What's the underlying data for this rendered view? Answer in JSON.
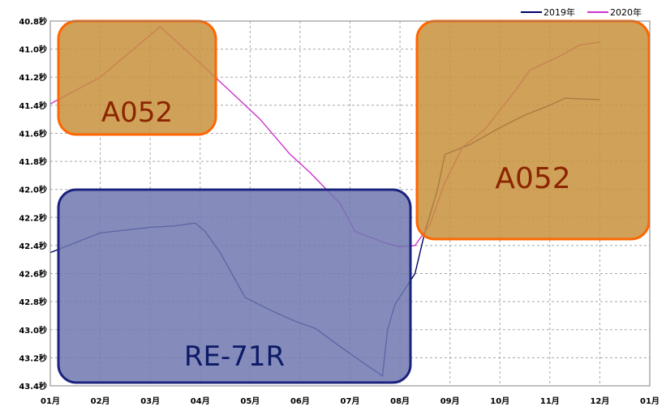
{
  "chart_data": {
    "type": "line",
    "x_ticks": [
      "01月",
      "02月",
      "03月",
      "04月",
      "05月",
      "06月",
      "07月",
      "08月",
      "09月",
      "10月",
      "11月",
      "12月",
      "01月"
    ],
    "y_ticks": [
      "40.8秒",
      "41.0秒",
      "41.2秒",
      "41.4秒",
      "41.6秒",
      "41.8秒",
      "42.0秒",
      "42.2秒",
      "42.4秒",
      "42.6秒",
      "42.8秒",
      "43.0秒",
      "43.2秒",
      "43.4秒"
    ],
    "ylim": [
      40.8,
      43.4
    ],
    "y_inverted": true,
    "xlim": [
      0,
      12
    ],
    "grid": true,
    "legend_position": "top-right",
    "series": [
      {
        "name": "2019年",
        "color": "#000066",
        "points": [
          [
            0,
            42.45
          ],
          [
            0.5,
            42.38
          ],
          [
            1,
            42.31
          ],
          [
            1.5,
            42.29
          ],
          [
            2,
            42.27
          ],
          [
            2.5,
            42.26
          ],
          [
            2.9,
            42.24
          ],
          [
            3.1,
            42.3
          ],
          [
            3.4,
            42.45
          ],
          [
            3.9,
            42.77
          ],
          [
            4.4,
            42.86
          ],
          [
            4.9,
            42.94
          ],
          [
            5.3,
            42.99
          ],
          [
            5.8,
            43.12
          ],
          [
            6.2,
            43.22
          ],
          [
            6.65,
            43.33
          ],
          [
            6.75,
            43.0
          ],
          [
            6.9,
            42.82
          ],
          [
            7.3,
            42.6
          ],
          [
            7.5,
            42.3
          ],
          [
            7.75,
            42.0
          ],
          [
            7.9,
            41.75
          ],
          [
            8.4,
            41.68
          ],
          [
            9,
            41.56
          ],
          [
            9.5,
            41.47
          ],
          [
            10,
            41.4
          ],
          [
            10.3,
            41.35
          ],
          [
            11,
            41.36
          ]
        ]
      },
      {
        "name": "2020年",
        "color": "#cc33cc",
        "points": [
          [
            0,
            41.39
          ],
          [
            1,
            41.2
          ],
          [
            2.2,
            40.84
          ],
          [
            3,
            41.1
          ],
          [
            3.6,
            41.3
          ],
          [
            4.2,
            41.5
          ],
          [
            4.8,
            41.75
          ],
          [
            5.2,
            41.88
          ],
          [
            5.8,
            42.1
          ],
          [
            6.1,
            42.3
          ],
          [
            6.7,
            42.38
          ],
          [
            7,
            42.41
          ],
          [
            7.3,
            42.4
          ],
          [
            7.6,
            42.25
          ],
          [
            7.9,
            41.95
          ],
          [
            8.25,
            41.7
          ],
          [
            8.7,
            41.57
          ],
          [
            9.3,
            41.3
          ],
          [
            9.6,
            41.15
          ],
          [
            10.2,
            41.05
          ],
          [
            10.6,
            40.97
          ],
          [
            11,
            40.95
          ]
        ]
      }
    ],
    "annotations": [
      {
        "label": "A052",
        "fill": "#c8913c",
        "border": "#ff6600",
        "text_color": "#8b2500"
      },
      {
        "label": "A052",
        "fill": "#c8913c",
        "border": "#ff6600",
        "text_color": "#8b2500"
      },
      {
        "label": "RE-71R",
        "fill": "#7078b0",
        "border": "#1a237e",
        "text_color": "#0d1a66"
      }
    ]
  }
}
